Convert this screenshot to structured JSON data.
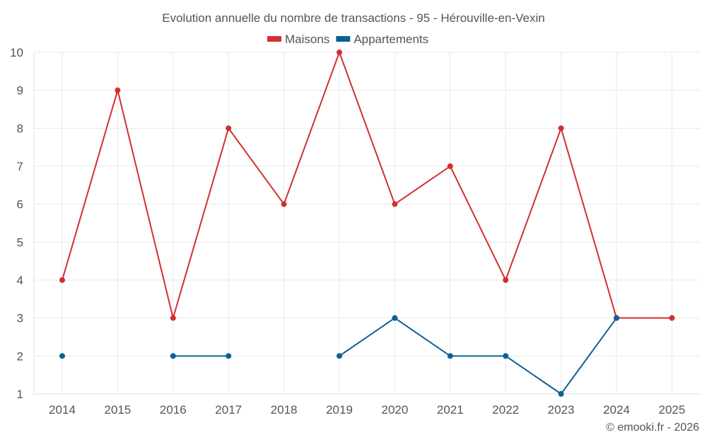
{
  "chart_data": {
    "type": "line",
    "title": "Evolution annuelle du nombre de transactions - 95 - Hérouville-en-Vexin",
    "categories": [
      "2014",
      "2015",
      "2016",
      "2017",
      "2018",
      "2019",
      "2020",
      "2021",
      "2022",
      "2023",
      "2024",
      "2025"
    ],
    "series": [
      {
        "name": "Maisons",
        "color": "#d32f2f",
        "values": [
          4,
          9,
          3,
          8,
          6,
          10,
          6,
          7,
          4,
          8,
          3,
          3
        ]
      },
      {
        "name": "Appartements",
        "color": "#0b6196",
        "values": [
          2,
          null,
          2,
          2,
          null,
          2,
          3,
          2,
          2,
          1,
          3,
          null
        ]
      }
    ],
    "ylim": [
      1,
      10
    ],
    "yticks": [
      1,
      2,
      3,
      4,
      5,
      6,
      7,
      8,
      9,
      10
    ],
    "xlabel": "",
    "ylabel": "",
    "grid": true,
    "legend": "top-center"
  },
  "credit": "© emooki.fr - 2026"
}
